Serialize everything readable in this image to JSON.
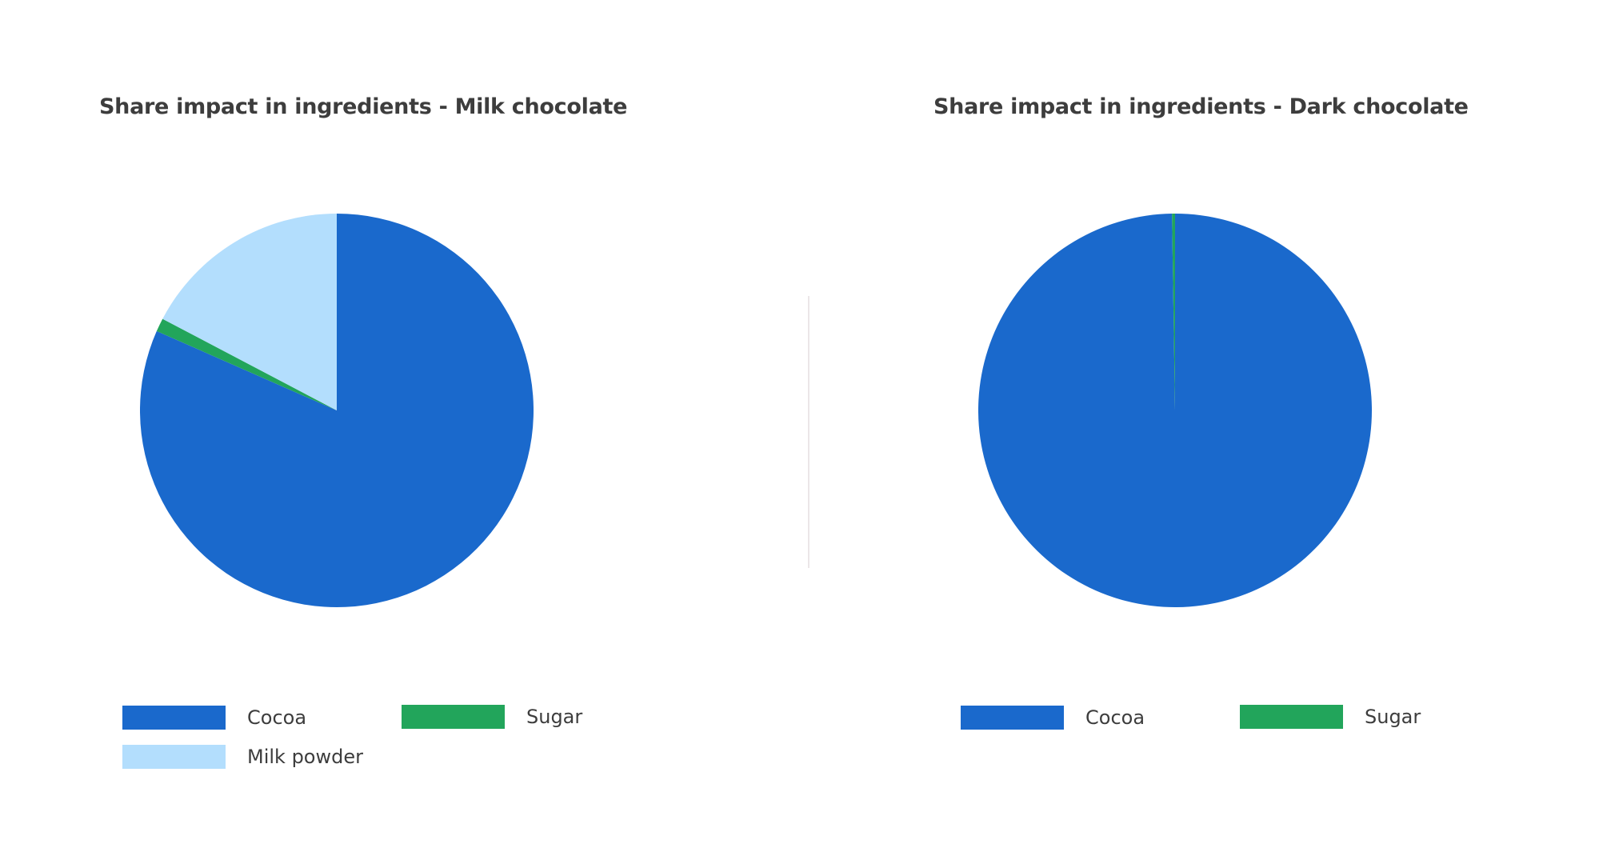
{
  "colors": {
    "cocoa": "#1a69cc",
    "sugar": "#22a55b",
    "milk_powder": "#b3defd",
    "divider": "#ebe6e8",
    "title_text": "#3d3d3d"
  },
  "charts": [
    {
      "title": "Share impact in ingredients - Milk chocolate",
      "legend": [
        {
          "label": "Cocoa",
          "color": "#1a69cc"
        },
        {
          "label": "Sugar",
          "color": "#22a55b"
        },
        {
          "label": "Milk powder",
          "color": "#b3defd"
        }
      ]
    },
    {
      "title": "Share impact in ingredients - Dark chocolate",
      "legend": [
        {
          "label": "Cocoa",
          "color": "#1a69cc"
        },
        {
          "label": "Sugar",
          "color": "#22a55b"
        }
      ]
    }
  ],
  "chart_data": [
    {
      "type": "pie",
      "title": "Share impact in ingredients - Milk chocolate",
      "categories": [
        "Cocoa",
        "Sugar",
        "Milk powder"
      ],
      "values": [
        81.6,
        1.1,
        17.3
      ],
      "unit": "%",
      "colors": [
        "#1a69cc",
        "#22a55b",
        "#b3defd"
      ],
      "start_angle": "12 o'clock, Cocoa clockwise",
      "legend_position": "bottom",
      "data_labels": false
    },
    {
      "type": "pie",
      "title": "Share impact in ingredients - Dark chocolate",
      "categories": [
        "Cocoa",
        "Sugar"
      ],
      "values": [
        99.75,
        0.25
      ],
      "unit": "%",
      "colors": [
        "#1a69cc",
        "#22a55b"
      ],
      "start_angle": "12 o'clock, Cocoa clockwise",
      "legend_position": "bottom",
      "data_labels": false
    }
  ]
}
